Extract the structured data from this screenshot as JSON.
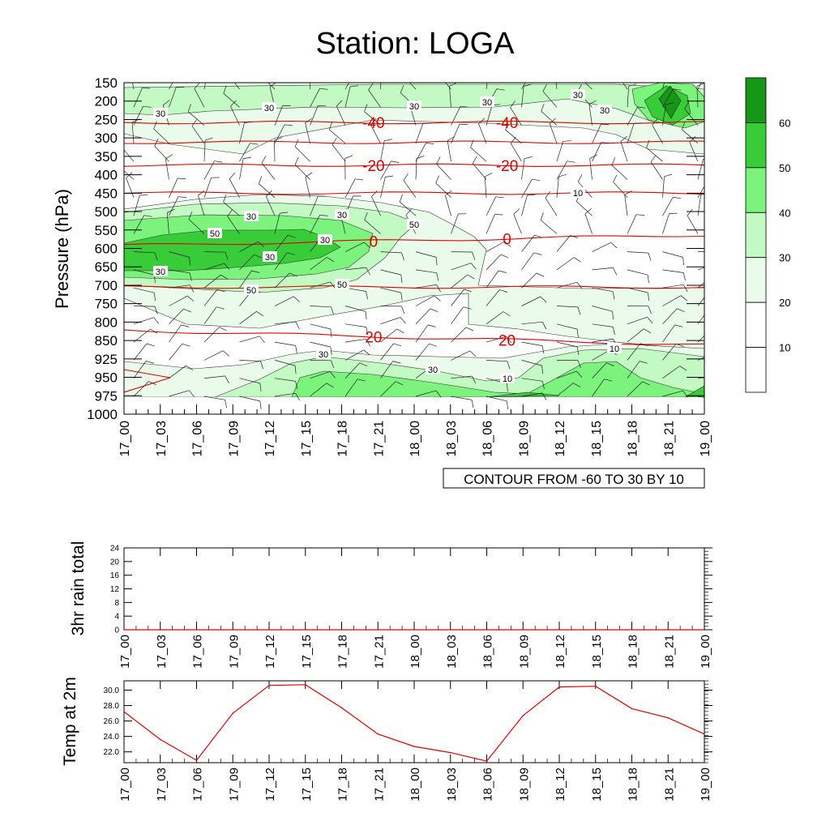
{
  "title": "Station: LOGA",
  "chart_data": [
    {
      "type": "heatmap",
      "subtype": "time-pressure cross-section with contours and wind barbs",
      "title": "Station: LOGA",
      "ylabel": "Pressure (hPa)",
      "y_ticks": [
        150,
        200,
        250,
        300,
        350,
        400,
        450,
        500,
        550,
        600,
        650,
        700,
        750,
        800,
        850,
        925,
        950,
        975,
        1000
      ],
      "x_ticks": [
        "17_00",
        "17_03",
        "17_06",
        "17_09",
        "17_12",
        "17_15",
        "17_18",
        "17_21",
        "18_00",
        "18_03",
        "18_06",
        "18_09",
        "18_12",
        "18_15",
        "18_18",
        "18_21",
        "19_00"
      ],
      "colorbar_labels": [
        "10",
        "20",
        "30",
        "40",
        "50",
        "60"
      ],
      "colorbar_colors": [
        "#ffffff",
        "#ffffff",
        "#ebfbeb",
        "#c3f9c3",
        "#7cf37c",
        "#39cc39",
        "#169716"
      ],
      "info_label": "CONTOUR FROM -60 TO 30 BY 10",
      "temperature_contours": [
        {
          "value": -40,
          "label": "-40",
          "pressure": 258
        },
        {
          "value": -30,
          "label": "",
          "pressure": 312
        },
        {
          "value": -20,
          "label": "-20",
          "pressure": 374
        },
        {
          "value": -10,
          "label": "",
          "pressure": 450
        },
        {
          "value": 0,
          "label": "0",
          "pressure": 592
        },
        {
          "value": 10,
          "label": "",
          "pressure": 705
        },
        {
          "value": 20,
          "label": "20",
          "pressure": 840
        }
      ],
      "humidity_contour_labels": [
        "30",
        "30",
        "30",
        "30",
        "30",
        "30",
        "30",
        "30",
        "50",
        "50",
        "50",
        "50",
        "30",
        "30",
        "30",
        "30",
        "30",
        "10",
        "10",
        "10"
      ]
    },
    {
      "type": "line",
      "ylabel": "3hr rain total",
      "y_ticks": [
        "0",
        "4",
        "8",
        "12",
        "16",
        "20",
        "24"
      ],
      "ylim": [
        0,
        24
      ],
      "x_ticks": [
        "17_00",
        "17_03",
        "17_06",
        "17_09",
        "17_12",
        "17_15",
        "17_18",
        "17_21",
        "18_00",
        "18_03",
        "18_06",
        "18_09",
        "18_12",
        "18_15",
        "18_18",
        "18_21",
        "19_00"
      ],
      "series": [
        {
          "name": "3hr rain total",
          "values": [
            0,
            0,
            0,
            0,
            0,
            0,
            0,
            0,
            0,
            0,
            0,
            0,
            0,
            0,
            0,
            0,
            0
          ]
        }
      ]
    },
    {
      "type": "line",
      "ylabel": "Temp at 2m",
      "y_ticks": [
        "22.0",
        "24.0",
        "26.0",
        "28.0",
        "30.0"
      ],
      "ylim": [
        20.6,
        31.2
      ],
      "x_ticks": [
        "17_00",
        "17_03",
        "17_06",
        "17_09",
        "17_12",
        "17_15",
        "17_18",
        "17_21",
        "18_00",
        "18_03",
        "18_06",
        "18_09",
        "18_12",
        "18_15",
        "18_18",
        "18_21",
        "19_00"
      ],
      "series": [
        {
          "name": "Temp at 2m",
          "color": "#e00000",
          "values": [
            27.2,
            23.6,
            20.9,
            27.0,
            30.6,
            30.7,
            27.7,
            24.3,
            22.7,
            21.9,
            20.8,
            26.7,
            30.4,
            30.5,
            27.6,
            26.4,
            24.3
          ]
        }
      ]
    }
  ]
}
